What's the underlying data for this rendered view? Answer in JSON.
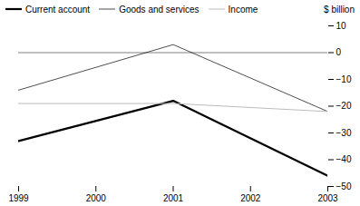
{
  "chart_data": {
    "type": "line",
    "x": [
      1999,
      2001,
      2003
    ],
    "series": [
      {
        "name": "Current account",
        "color": "#000000",
        "values": [
          -33,
          -18,
          -46
        ]
      },
      {
        "name": "Goods and services",
        "color": "#000000",
        "values": [
          -14,
          3,
          -22
        ]
      },
      {
        "name": "Income",
        "color": "#bbbbbb",
        "values": [
          -19,
          -19,
          -22
        ]
      }
    ],
    "y_label": "$ billion",
    "xlim": [
      1999,
      2003
    ],
    "xticks": [
      1999,
      2000,
      2001,
      2002,
      2003
    ],
    "ylim": [
      -50,
      10
    ],
    "yticks": [
      10,
      0,
      -10,
      -20,
      -30,
      -40,
      -50
    ],
    "legend": "upper left",
    "grid": false
  }
}
